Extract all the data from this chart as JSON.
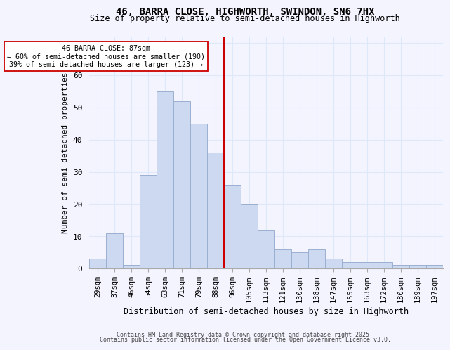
{
  "title": "46, BARRA CLOSE, HIGHWORTH, SWINDON, SN6 7HX",
  "subtitle": "Size of property relative to semi-detached houses in Highworth",
  "xlabel": "Distribution of semi-detached houses by size in Highworth",
  "ylabel": "Number of semi-detached properties",
  "bar_labels": [
    "29sqm",
    "37sqm",
    "46sqm",
    "54sqm",
    "63sqm",
    "71sqm",
    "79sqm",
    "88sqm",
    "96sqm",
    "105sqm",
    "113sqm",
    "121sqm",
    "130sqm",
    "138sqm",
    "147sqm",
    "155sqm",
    "163sqm",
    "172sqm",
    "180sqm",
    "189sqm",
    "197sqm"
  ],
  "bar_values": [
    3,
    11,
    1,
    29,
    55,
    52,
    45,
    36,
    26,
    20,
    12,
    6,
    5,
    6,
    3,
    2,
    2,
    2,
    1,
    1,
    1
  ],
  "bar_color": "#ccd9f0",
  "bar_edge_color": "#9ab0d0",
  "vline_color": "#cc0000",
  "annotation_line1": "46 BARRA CLOSE: 87sqm",
  "annotation_line2": "← 60% of semi-detached houses are smaller (190)",
  "annotation_line3": "39% of semi-detached houses are larger (123) →",
  "annotation_box_facecolor": "white",
  "annotation_box_edgecolor": "#cc0000",
  "ylim": [
    0,
    72
  ],
  "yticks": [
    0,
    10,
    20,
    30,
    40,
    50,
    60,
    70
  ],
  "bg_color": "#f4f4ff",
  "grid_color": "#dde8f8",
  "footer1": "Contains HM Land Registry data © Crown copyright and database right 2025.",
  "footer2": "Contains public sector information licensed under the Open Government Licence v3.0."
}
